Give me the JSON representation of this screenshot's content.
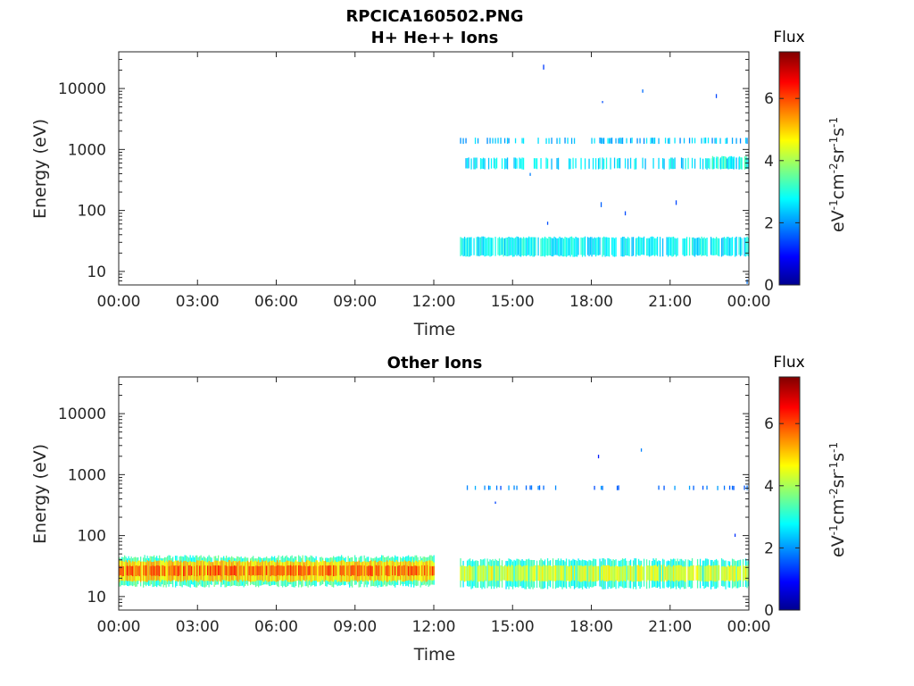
{
  "figure": {
    "title_line1": "RPCICA160502.PNG",
    "colorbar_title": "Flux",
    "colorbar_ticks": [
      "0",
      "2",
      "4",
      "6"
    ],
    "colorbar_range": [
      0,
      7.5
    ]
  },
  "colors": {
    "jet": [
      "#00008f",
      "#0000ff",
      "#00ffff",
      "#ffff00",
      "#ff0000",
      "#800000"
    ],
    "axis": "#262626"
  },
  "chart_data": [
    {
      "type": "heatmap",
      "title": "H+ He++ Ions",
      "xlabel": "Time",
      "ylabel": "Energy (eV)",
      "colorbar_label": "eV-1cm-2sr-1s-1",
      "x_ticks": [
        "00:00",
        "03:00",
        "06:00",
        "09:00",
        "12:00",
        "15:00",
        "18:00",
        "21:00",
        "00:00"
      ],
      "x_range_hours": [
        0,
        24
      ],
      "y_scale": "log",
      "y_ticks": [
        "10",
        "100",
        "1000",
        "10000"
      ],
      "y_range": [
        6,
        40000
      ],
      "bands": [
        {
          "t_start": 13.0,
          "t_end": 24.0,
          "e_low": 18,
          "e_high": 36,
          "flux": 2.7,
          "density": 0.85
        },
        {
          "t_start": 13.0,
          "t_end": 24.0,
          "e_low": 480,
          "e_high": 720,
          "flux": 2.6,
          "density": 0.45
        },
        {
          "t_start": 13.0,
          "t_end": 24.0,
          "e_low": 1250,
          "e_high": 1550,
          "flux": 2.3,
          "density": 0.35
        },
        {
          "t_start": 22.6,
          "t_end": 23.9,
          "e_low": 480,
          "e_high": 760,
          "flux": 3.0,
          "density": 0.75
        },
        {
          "t_start": 13.0,
          "t_end": 24.0,
          "e_low": 6,
          "e_high": 30000,
          "flux": 1.5,
          "density": 0.05
        }
      ]
    },
    {
      "type": "heatmap",
      "title": "Other Ions",
      "xlabel": "Time",
      "ylabel": "Energy (eV)",
      "colorbar_label": "eV-1cm-2sr-1s-1",
      "x_ticks": [
        "00:00",
        "03:00",
        "06:00",
        "09:00",
        "12:00",
        "15:00",
        "18:00",
        "21:00",
        "00:00"
      ],
      "x_range_hours": [
        0,
        24
      ],
      "y_scale": "log",
      "y_ticks": [
        "10",
        "100",
        "1000",
        "10000"
      ],
      "y_range": [
        6,
        40000
      ],
      "bands": [
        {
          "t_start": 0.0,
          "t_end": 12.0,
          "e_low": 15,
          "e_high": 45,
          "flux": 3.2,
          "density": 0.9
        },
        {
          "t_start": 0.0,
          "t_end": 12.0,
          "e_low": 18,
          "e_high": 38,
          "flux": 5.0,
          "density": 1.0
        },
        {
          "t_start": 0.0,
          "t_end": 12.0,
          "e_low": 22,
          "e_high": 32,
          "flux": 5.9,
          "density": 0.8
        },
        {
          "t_start": 13.0,
          "t_end": 24.0,
          "e_low": 14,
          "e_high": 40,
          "flux": 3.0,
          "density": 0.8
        },
        {
          "t_start": 13.0,
          "t_end": 24.0,
          "e_low": 18,
          "e_high": 32,
          "flux": 4.4,
          "density": 0.9
        },
        {
          "t_start": 13.0,
          "t_end": 24.0,
          "e_low": 560,
          "e_high": 660,
          "flux": 1.9,
          "density": 0.2
        },
        {
          "t_start": 13.0,
          "t_end": 24.0,
          "e_low": 40,
          "e_high": 10000,
          "flux": 1.5,
          "density": 0.01
        }
      ]
    }
  ]
}
